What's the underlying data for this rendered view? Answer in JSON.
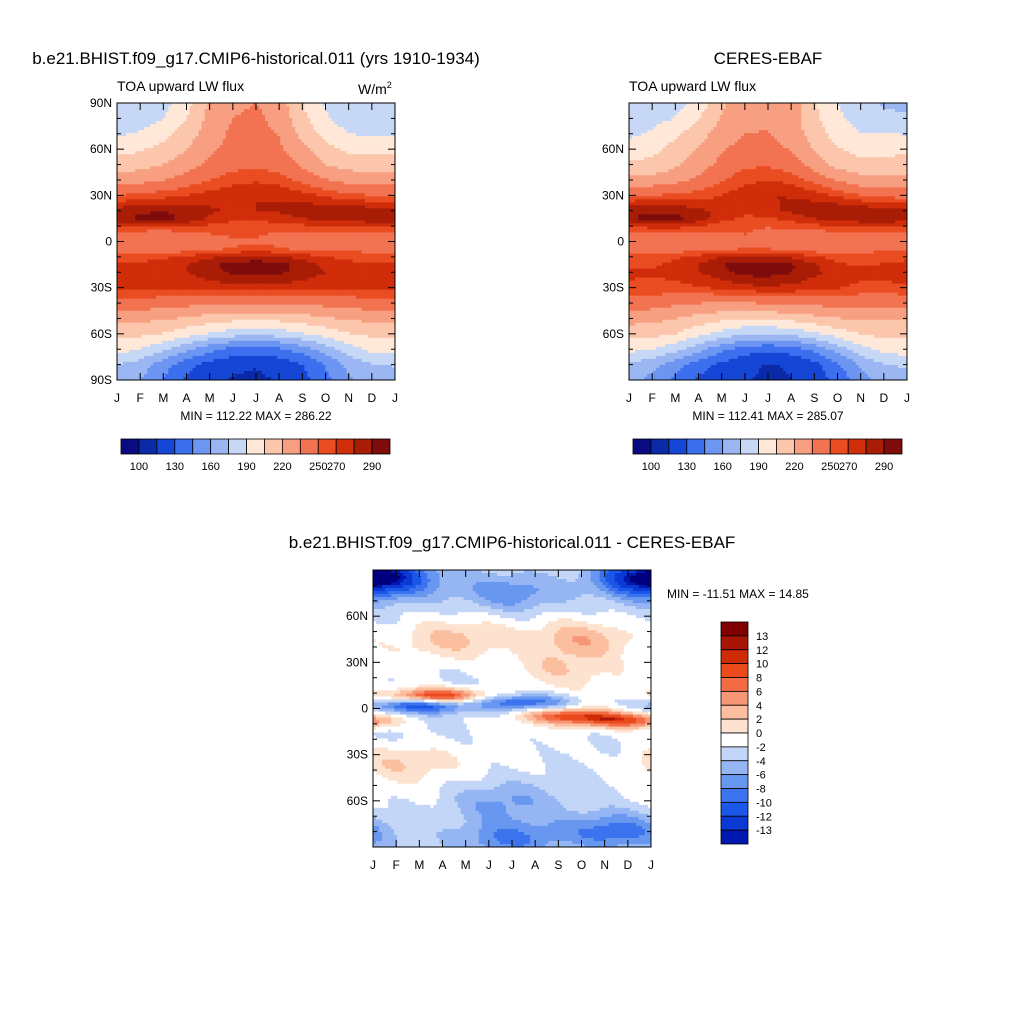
{
  "colors": {
    "abs_levels": [
      "#0a0a82",
      "#0a2aa8",
      "#1546d6",
      "#3c6fee",
      "#6d95f2",
      "#9ab6f3",
      "#c6d8f5",
      "#ffe8d8",
      "#fbc6ac",
      "#f79f80",
      "#f27351",
      "#ea4d22",
      "#d02d0a",
      "#a91d06",
      "#7e0c0c"
    ],
    "diff_levels": [
      "#00007e",
      "#0017b0",
      "#0a3ad3",
      "#1b57e8",
      "#3c73ee",
      "#6897f0",
      "#96b6f3",
      "#c3d6f7",
      "#ffffff",
      "#fde3cf",
      "#fbbf9f",
      "#f79677",
      "#f26b43",
      "#ea4a1c",
      "#cf2b07",
      "#a81506",
      "#7f0000"
    ]
  },
  "panels": {
    "model": {
      "title": "b.e21.BHIST.f09_g17.CMIP6-historical.011 (yrs 1910-1934)",
      "variable": "TOA upward LW flux",
      "units_base": "W/m",
      "units_exp": "2",
      "minmax": "MIN = 112.22 MAX = 286.22"
    },
    "obs": {
      "title": "CERES-EBAF",
      "variable": "TOA upward LW flux",
      "minmax": "MIN = 112.41 MAX = 285.07"
    },
    "diff": {
      "title": "b.e21.BHIST.f09_g17.CMIP6-historical.011 - CERES-EBAF",
      "minmax": "MIN = -11.51 MAX =  14.85"
    }
  },
  "chart_data": [
    {
      "type": "heatmap",
      "title": "b.e21.BHIST.f09_g17.CMIP6-historical.011 (yrs 1910-1934)",
      "subtitle": "TOA upward LW flux",
      "units": "W/m2",
      "x_ticks": [
        "J",
        "F",
        "M",
        "A",
        "M",
        "J",
        "J",
        "A",
        "S",
        "O",
        "N",
        "D",
        "J"
      ],
      "y_ticks": [
        "90N",
        "60N",
        "30N",
        "0",
        "30S",
        "60S",
        "90S"
      ],
      "ylim": [
        -90,
        90
      ],
      "min": 112.22,
      "max": 286.22,
      "colorbar_labels": [
        "100",
        "130",
        "160",
        "190",
        "220",
        "250",
        "270",
        "290"
      ],
      "latitudes": [
        90,
        80,
        70,
        60,
        50,
        40,
        30,
        20,
        15,
        10,
        5,
        0,
        -5,
        -10,
        -15,
        -20,
        -30,
        -40,
        -50,
        -60,
        -70,
        -80,
        -90
      ],
      "month_profile": {
        "90": [
          175,
          178,
          185,
          200,
          222,
          232,
          235,
          228,
          205,
          188,
          178,
          175
        ],
        "80": [
          178,
          182,
          190,
          205,
          225,
          235,
          238,
          230,
          210,
          192,
          182,
          178
        ],
        "70": [
          188,
          192,
          200,
          212,
          228,
          238,
          240,
          234,
          216,
          200,
          190,
          188
        ],
        "60": [
          200,
          203,
          210,
          220,
          232,
          240,
          242,
          238,
          224,
          210,
          202,
          200
        ],
        "50": [
          212,
          214,
          220,
          228,
          238,
          245,
          248,
          244,
          232,
          220,
          214,
          212
        ],
        "40": [
          228,
          230,
          235,
          242,
          250,
          256,
          258,
          255,
          246,
          236,
          230,
          228
        ],
        "30": [
          250,
          252,
          256,
          260,
          264,
          268,
          270,
          268,
          264,
          258,
          252,
          250
        ],
        "20": [
          276,
          278,
          280,
          276,
          272,
          268,
          270,
          272,
          276,
          278,
          278,
          276
        ],
        "15": [
          278,
          282,
          284,
          278,
          268,
          262,
          262,
          265,
          270,
          274,
          276,
          278
        ],
        "10": [
          262,
          264,
          266,
          262,
          258,
          256,
          255,
          256,
          258,
          260,
          260,
          262
        ],
        "5": [
          244,
          242,
          240,
          244,
          250,
          254,
          252,
          248,
          246,
          246,
          246,
          244
        ],
        "0": [
          240,
          238,
          236,
          238,
          242,
          246,
          248,
          246,
          242,
          240,
          240,
          240
        ],
        "-5": [
          246,
          244,
          242,
          244,
          248,
          252,
          254,
          252,
          248,
          246,
          246,
          246
        ],
        "-10": [
          256,
          256,
          258,
          262,
          268,
          272,
          274,
          272,
          266,
          260,
          258,
          256
        ],
        "-15": [
          262,
          262,
          264,
          270,
          278,
          284,
          286,
          284,
          276,
          266,
          262,
          262
        ],
        "-20": [
          266,
          266,
          266,
          270,
          276,
          282,
          284,
          282,
          276,
          270,
          268,
          266
        ],
        "-30": [
          262,
          262,
          262,
          262,
          264,
          266,
          266,
          266,
          264,
          264,
          262,
          262
        ],
        "-40": [
          244,
          244,
          242,
          240,
          238,
          236,
          236,
          236,
          238,
          240,
          242,
          244
        ],
        "-50": [
          224,
          224,
          222,
          218,
          214,
          210,
          210,
          210,
          214,
          218,
          222,
          224
        ],
        "-60": [
          210,
          208,
          204,
          196,
          188,
          182,
          180,
          182,
          188,
          196,
          204,
          208
        ],
        "-70": [
          196,
          190,
          178,
          164,
          150,
          140,
          138,
          142,
          152,
          168,
          184,
          194
        ],
        "-80": [
          176,
          168,
          152,
          136,
          124,
          118,
          116,
          120,
          130,
          146,
          164,
          174
        ],
        "-90": [
          170,
          160,
          144,
          128,
          118,
          114,
          112,
          116,
          124,
          140,
          158,
          168
        ]
      }
    },
    {
      "type": "heatmap",
      "title": "CERES-EBAF",
      "subtitle": "TOA upward LW flux",
      "x_ticks": [
        "J",
        "F",
        "M",
        "A",
        "M",
        "J",
        "J",
        "A",
        "S",
        "O",
        "N",
        "D",
        "J"
      ],
      "y_ticks": [
        "60N",
        "30N",
        "0",
        "30S",
        "60S"
      ],
      "ylim": [
        -90,
        90
      ],
      "min": 112.41,
      "max": 285.07,
      "colorbar_labels": [
        "100",
        "130",
        "160",
        "190",
        "220",
        "250",
        "270",
        "290"
      ]
    },
    {
      "type": "heatmap",
      "title": "b.e21.BHIST.f09_g17.CMIP6-historical.011 - CERES-EBAF",
      "x_ticks": [
        "J",
        "F",
        "M",
        "A",
        "M",
        "J",
        "J",
        "A",
        "S",
        "O",
        "N",
        "D",
        "J"
      ],
      "y_ticks": [
        "60N",
        "30N",
        "0",
        "30S",
        "60S"
      ],
      "ylim": [
        -90,
        90
      ],
      "min": -11.51,
      "max": 14.85,
      "colorbar_labels": [
        "13",
        "12",
        "10",
        "8",
        "6",
        "4",
        "2",
        "0",
        "-2",
        "-4",
        "-6",
        "-8",
        "-10",
        "-12",
        "-13"
      ],
      "features": [
        {
          "lat": 85,
          "month": 0.5,
          "value": -8
        },
        {
          "lat": 85,
          "month": 11.5,
          "value": -8
        },
        {
          "lat": 75,
          "month": 6.0,
          "value": -6
        },
        {
          "lat": 45,
          "month": 3.5,
          "value": 4
        },
        {
          "lat": 45,
          "month": 9.0,
          "value": 6
        },
        {
          "lat": 25,
          "month": 8.0,
          "value": 4
        },
        {
          "lat": 8,
          "month": 2.8,
          "value": 13
        },
        {
          "lat": 2,
          "month": 2.0,
          "value": -10
        },
        {
          "lat": 4,
          "month": 6.5,
          "value": -8
        },
        {
          "lat": -5,
          "month": 8.5,
          "value": 10
        },
        {
          "lat": -8,
          "month": 11.0,
          "value": 10
        },
        {
          "lat": -35,
          "month": 1.0,
          "value": 4
        },
        {
          "lat": -60,
          "month": 5.5,
          "value": -4
        },
        {
          "lat": -80,
          "month": 10.5,
          "value": -8
        },
        {
          "lat": -85,
          "month": 6.0,
          "value": -6
        }
      ]
    }
  ]
}
